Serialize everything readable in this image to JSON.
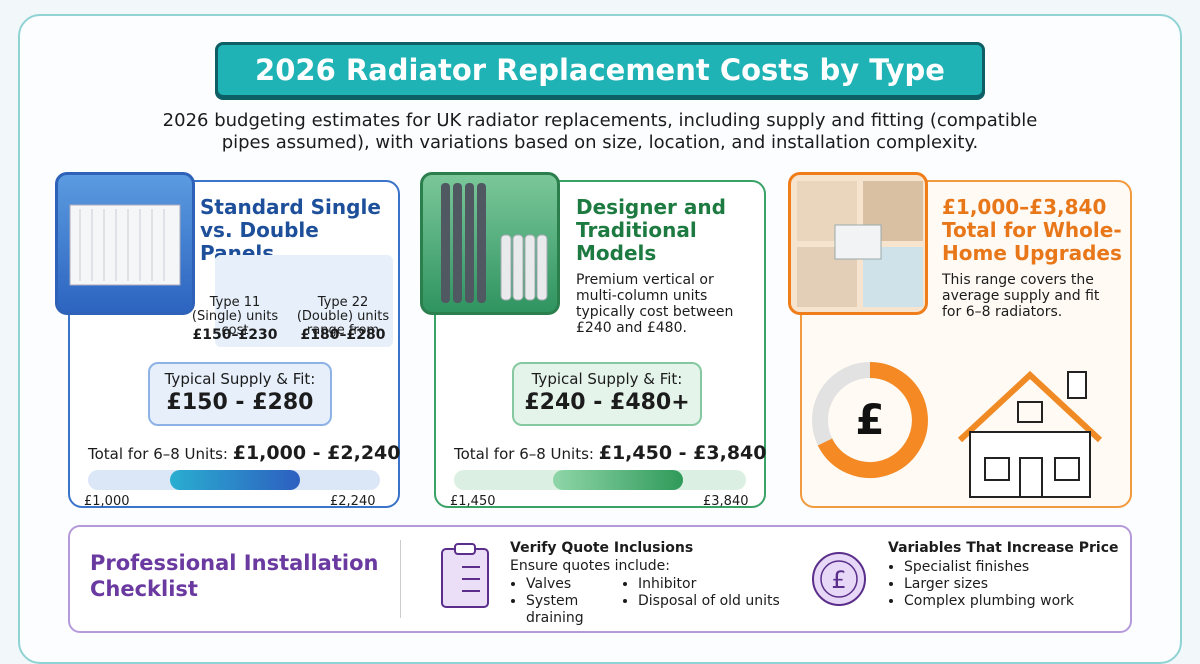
{
  "header": {
    "title": "2026 Radiator Replacement Costs by Type",
    "subtitle": "2026 budgeting estimates for UK radiator replacements, including supply and fitting (compatible pipes assumed), with variations based on size, location, and installation complexity."
  },
  "cards": [
    {
      "title": "Standard Single vs. Double Panels",
      "panels": [
        {
          "label": "Type 11 (Single) units cost",
          "price": "£150–£230"
        },
        {
          "label": "Type 22 (Double) units range from",
          "price": "£180–£280"
        }
      ],
      "tag_label": "Typical Supply & Fit:",
      "tag_price": "£150 - £280",
      "total_label": "Total for 6–8 Units:",
      "total_value": "£1,000 - £2,240",
      "range_min": "£1,000",
      "range_max": "£2,240"
    },
    {
      "title": "Designer and Traditional Models",
      "description": "Premium vertical or multi-column units typically cost between £240 and £480.",
      "tag_label": "Typical Supply & Fit:",
      "tag_price": "£240 - £480+",
      "total_label": "Total for 6–8 Units:",
      "total_value": "£1,450 - £3,840",
      "range_min": "£1,450",
      "range_max": "£3,840"
    },
    {
      "title": "£1,000–£3,840 Total for Whole-Home Upgrades",
      "description": "This range covers the average supply and fit for 6–8 radiators."
    }
  ],
  "checklist": {
    "title": "Professional Installation Checklist",
    "verify": {
      "title": "Verify Quote Inclusions",
      "intro": "Ensure quotes include:",
      "items": [
        "Valves",
        "System draining",
        "Inhibitor",
        "Disposal of old units"
      ]
    },
    "variables": {
      "title": "Variables That Increase Price",
      "items": [
        "Specialist finishes",
        "Larger sizes",
        "Complex plumbing work"
      ]
    }
  }
}
